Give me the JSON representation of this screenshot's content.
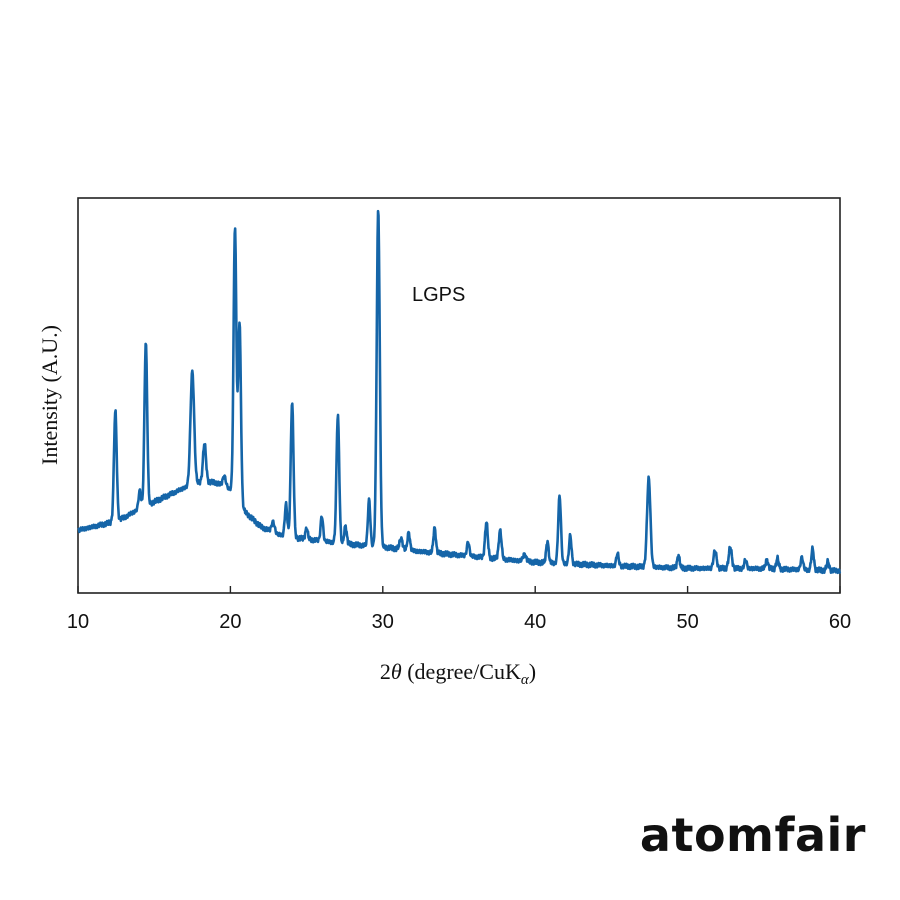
{
  "brand": {
    "logo_text": "atomfair"
  },
  "chart_data": {
    "type": "line",
    "xlabel_prefix": "2",
    "xlabel_theta": "θ",
    "xlabel_rest": " (degree/CuK",
    "xlabel_sub": "α",
    "xlabel_close": ")",
    "ylabel": "Intensity (A.U.)",
    "annotation": "LGPS",
    "xlim": [
      10,
      60
    ],
    "xticks": [
      10,
      20,
      30,
      40,
      50,
      60
    ],
    "ylim": [
      0,
      100
    ],
    "line_color": "#1565a8",
    "background": {
      "points": [
        [
          10,
          14
        ],
        [
          11,
          15
        ],
        [
          12,
          16
        ],
        [
          13,
          17.5
        ],
        [
          14,
          20
        ],
        [
          15,
          22
        ],
        [
          16,
          24
        ],
        [
          17,
          26
        ],
        [
          18,
          27.5
        ],
        [
          19,
          27.5
        ],
        [
          20,
          25.5
        ],
        [
          21,
          19
        ],
        [
          22,
          15
        ],
        [
          23,
          13
        ],
        [
          24,
          12
        ],
        [
          25,
          11.5
        ],
        [
          26,
          11
        ],
        [
          27,
          10.5
        ],
        [
          28,
          10
        ],
        [
          30,
          9.3
        ],
        [
          32,
          8.2
        ],
        [
          35,
          7
        ],
        [
          40,
          5
        ],
        [
          45,
          4
        ],
        [
          50,
          3.3
        ],
        [
          55,
          3.2
        ],
        [
          60,
          2.6
        ]
      ]
    },
    "peaks": [
      {
        "x": 12.45,
        "h": 31,
        "w": 0.09
      },
      {
        "x": 14.05,
        "h": 5,
        "w": 0.08
      },
      {
        "x": 14.45,
        "h": 46,
        "w": 0.09
      },
      {
        "x": 17.5,
        "h": 32,
        "w": 0.12
      },
      {
        "x": 18.3,
        "h": 11,
        "w": 0.1
      },
      {
        "x": 19.6,
        "h": 3,
        "w": 0.1
      },
      {
        "x": 20.3,
        "h": 76,
        "w": 0.09
      },
      {
        "x": 20.6,
        "h": 51,
        "w": 0.09
      },
      {
        "x": 22.8,
        "h": 3,
        "w": 0.1
      },
      {
        "x": 23.65,
        "h": 9,
        "w": 0.08
      },
      {
        "x": 24.05,
        "h": 38,
        "w": 0.09
      },
      {
        "x": 25.0,
        "h": 3,
        "w": 0.08
      },
      {
        "x": 26.0,
        "h": 7,
        "w": 0.08
      },
      {
        "x": 27.05,
        "h": 36,
        "w": 0.09
      },
      {
        "x": 27.55,
        "h": 5,
        "w": 0.08
      },
      {
        "x": 29.1,
        "h": 13,
        "w": 0.08
      },
      {
        "x": 29.7,
        "h": 95,
        "w": 0.1
      },
      {
        "x": 31.2,
        "h": 3,
        "w": 0.1
      },
      {
        "x": 31.7,
        "h": 5,
        "w": 0.08
      },
      {
        "x": 33.4,
        "h": 7,
        "w": 0.08
      },
      {
        "x": 35.6,
        "h": 4,
        "w": 0.08
      },
      {
        "x": 36.8,
        "h": 10,
        "w": 0.09
      },
      {
        "x": 37.7,
        "h": 8,
        "w": 0.09
      },
      {
        "x": 39.3,
        "h": 2,
        "w": 0.1
      },
      {
        "x": 40.8,
        "h": 6,
        "w": 0.08
      },
      {
        "x": 41.6,
        "h": 19,
        "w": 0.09
      },
      {
        "x": 42.3,
        "h": 8,
        "w": 0.08
      },
      {
        "x": 45.4,
        "h": 3.5,
        "w": 0.08
      },
      {
        "x": 47.45,
        "h": 25,
        "w": 0.11
      },
      {
        "x": 49.4,
        "h": 3.5,
        "w": 0.08
      },
      {
        "x": 51.8,
        "h": 5,
        "w": 0.1
      },
      {
        "x": 52.8,
        "h": 6,
        "w": 0.1
      },
      {
        "x": 53.8,
        "h": 2.5,
        "w": 0.08
      },
      {
        "x": 55.2,
        "h": 2.5,
        "w": 0.08
      },
      {
        "x": 55.9,
        "h": 3,
        "w": 0.08
      },
      {
        "x": 57.5,
        "h": 3.5,
        "w": 0.08
      },
      {
        "x": 58.2,
        "h": 6,
        "w": 0.08
      },
      {
        "x": 59.2,
        "h": 2.5,
        "w": 0.08
      }
    ]
  }
}
